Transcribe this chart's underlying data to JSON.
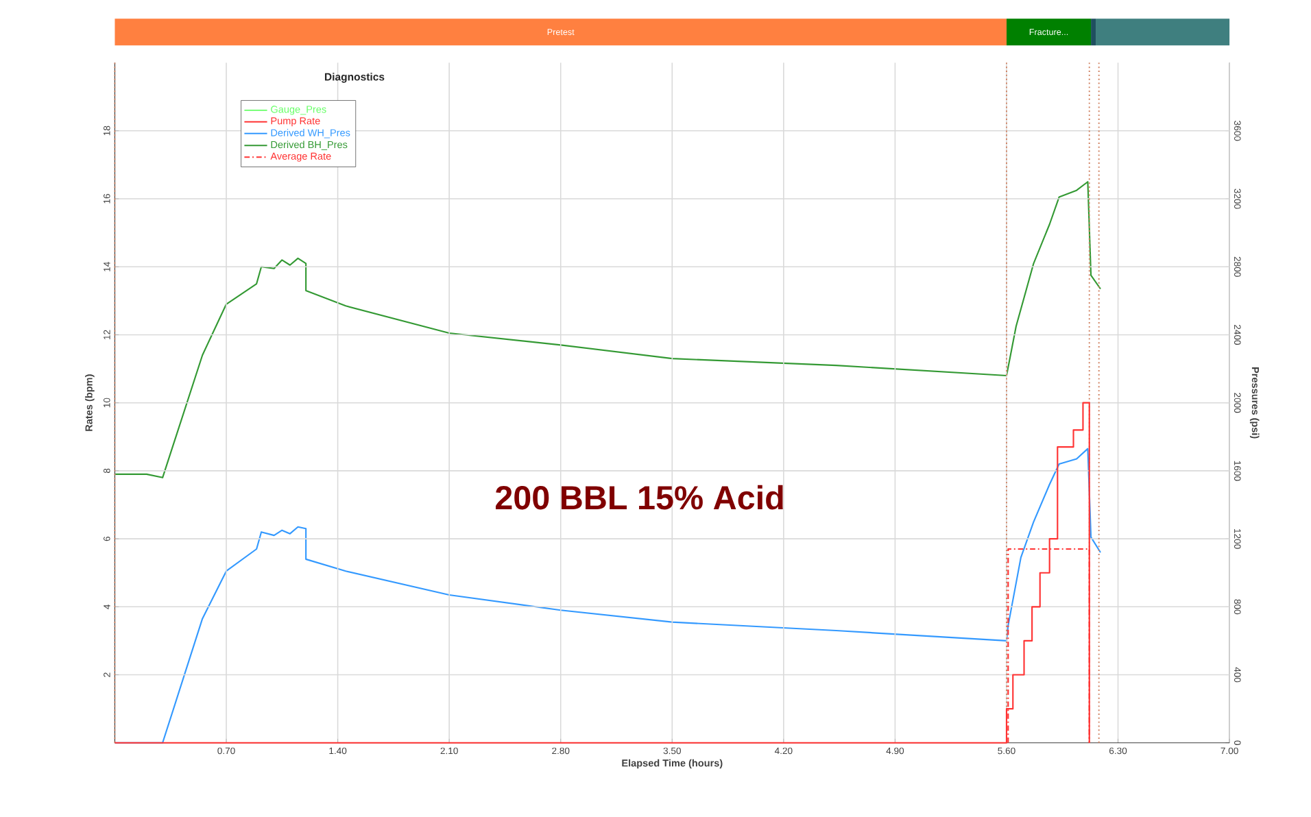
{
  "chart_data": [
    {
      "type": "bar",
      "orientation": "horizontal",
      "stacked": true,
      "categories": [
        null
      ],
      "xlim": [
        0,
        7
      ],
      "tick_labels": false,
      "series": [
        {
          "name": "Pretest",
          "color": "#ff8040",
          "values": [
            5.6
          ]
        },
        {
          "name": "Fracture...",
          "color": "#008000",
          "values": [
            0.53
          ]
        },
        {
          "color": "#1f4f5f",
          "values": [
            0.03
          ]
        },
        {
          "color": "#3f7f7f",
          "values": [
            0.84
          ]
        }
      ]
    },
    {
      "type": "line",
      "legend_title": "Diagnostics",
      "xlabel": "Elapsed Time (hours)",
      "ylabel": "Rates (bpm)",
      "y2label": "Pressures (psi)",
      "xlim": [
        0,
        7
      ],
      "ylim": [
        0,
        20
      ],
      "y2lim": [
        0,
        4000
      ],
      "xticks": [
        {
          "value": 0,
          "label": null
        },
        {
          "value": 0.7,
          "label": "0.70"
        },
        {
          "value": 1.4,
          "label": "1.40"
        },
        {
          "value": 2.1,
          "label": "2.10"
        },
        {
          "value": 2.8,
          "label": "2.80"
        },
        {
          "value": 3.5,
          "label": "3.50"
        },
        {
          "value": 4.2,
          "label": "4.20"
        },
        {
          "value": 4.9,
          "label": "4.90"
        },
        {
          "value": 5.6,
          "label": "5.60"
        },
        {
          "value": 6.3,
          "label": "6.30"
        },
        {
          "value": 7,
          "label": "7.00"
        }
      ],
      "yticks": [
        2,
        4,
        6,
        8,
        10,
        12,
        14,
        16,
        18
      ],
      "y2ticks": [
        0,
        400,
        800,
        1200,
        1600,
        2000,
        2400,
        2800,
        3200,
        3600
      ],
      "grid": true,
      "legend": "top left",
      "series": [
        {
          "name": "Gauge_Pres",
          "color": "#66ff66",
          "axis": "y2"
        },
        {
          "name": "Pump Rate",
          "color": "#ff3333",
          "type": "step",
          "x": [
            0,
            5.6,
            5.64,
            5.71,
            5.76,
            5.81,
            5.87,
            5.92,
            6.02,
            6.08,
            6.12
          ],
          "values": [
            0,
            1,
            2,
            3,
            4,
            5,
            6,
            8.7,
            9.2,
            10,
            0
          ]
        },
        {
          "name": "Derived WH_Pres",
          "color": "#3399ff",
          "axis": "y2",
          "x": [
            0,
            0.3,
            0.55,
            0.7,
            0.89,
            0.92,
            1.0,
            1.05,
            1.1,
            1.15,
            1.2,
            1.2,
            1.45,
            2.1,
            2.8,
            3.5,
            4.53,
            5.6,
            5.61,
            5.69,
            5.77,
            5.87,
            5.93,
            6.04,
            6.11,
            6.13,
            6.19
          ],
          "values": [
            0,
            0,
            730,
            1010,
            1140,
            1240,
            1220,
            1250,
            1230,
            1270,
            1260,
            1080,
            1010,
            870,
            780,
            710,
            660,
            600,
            690,
            1090,
            1300,
            1520,
            1640,
            1670,
            1730,
            1210,
            1120
          ]
        },
        {
          "name": "Derived BH_Pres",
          "color": "#339933",
          "axis": "y2",
          "x": [
            0,
            0.2,
            0.3,
            0.55,
            0.7,
            0.89,
            0.92,
            1.0,
            1.05,
            1.1,
            1.15,
            1.2,
            1.2,
            1.45,
            2.1,
            2.8,
            3.5,
            4.53,
            5.6,
            5.66,
            5.77,
            5.87,
            5.93,
            6.04,
            6.11,
            6.13,
            6.19
          ],
          "values": [
            1580,
            1580,
            1560,
            2280,
            2580,
            2700,
            2800,
            2790,
            2840,
            2810,
            2850,
            2820,
            2660,
            2570,
            2410,
            2340,
            2260,
            2220,
            2160,
            2450,
            2820,
            3050,
            3210,
            3250,
            3300,
            2750,
            2670
          ]
        },
        {
          "name": "Average Rate",
          "color": "#ff3333",
          "line_style": "dashed",
          "x": [
            5.61,
            5.61,
            6.12,
            6.12
          ],
          "values": [
            0,
            5.7,
            5.7,
            0
          ]
        }
      ],
      "ref_lines": [
        {
          "axis": "x",
          "value": 0,
          "color": "#d08060",
          "line_style": "dotted"
        },
        {
          "axis": "x",
          "value": 5.6,
          "color": "#d08060",
          "line_style": "dotted"
        },
        {
          "axis": "x",
          "value": 6.12,
          "color": "#d08060",
          "line_style": "dotted"
        },
        {
          "axis": "x",
          "value": 6.18,
          "color": "#d08060",
          "line_style": "dotted"
        }
      ],
      "annotations": [
        "200 BBL 15% Acid"
      ]
    }
  ]
}
